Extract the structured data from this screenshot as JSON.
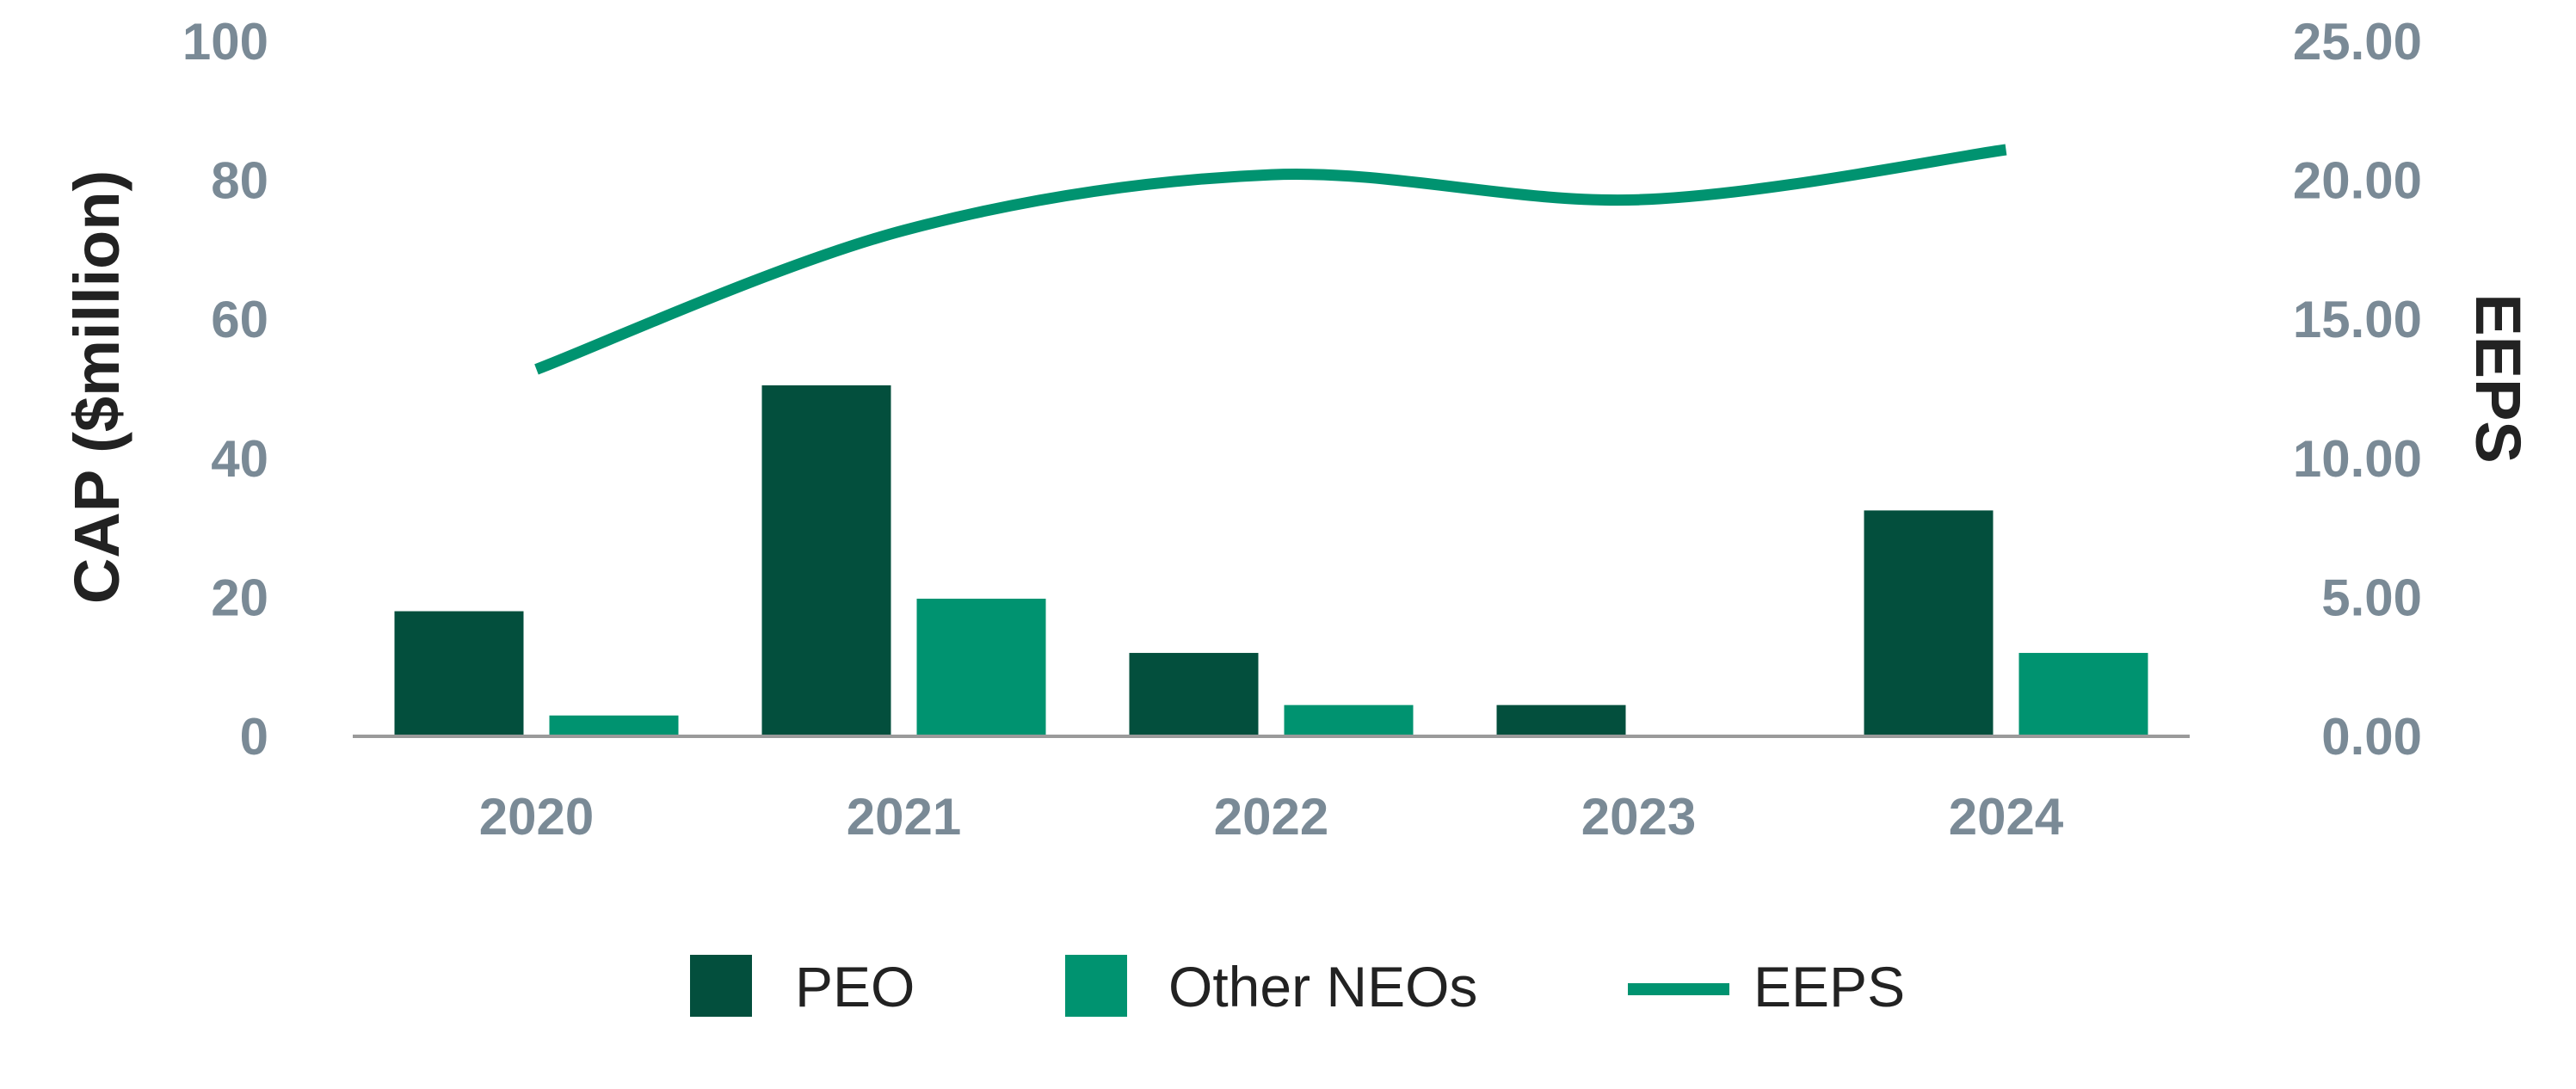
{
  "chart_data": {
    "type": "bar",
    "categories": [
      "2020",
      "2021",
      "2022",
      "2023",
      "2024"
    ],
    "series": [
      {
        "name": "PEO",
        "kind": "bar",
        "axis": "left",
        "color": "#034f3d",
        "values": [
          18,
          50.5,
          12,
          4.5,
          32.5
        ]
      },
      {
        "name": "Other NEOs",
        "kind": "bar",
        "axis": "left",
        "color": "#009370",
        "values": [
          3,
          19.8,
          4.5,
          null,
          12
        ]
      },
      {
        "name": "EEPS",
        "kind": "line",
        "axis": "right",
        "color": "#009370",
        "values": [
          13.2,
          18.2,
          20.2,
          19.3,
          21.1
        ]
      }
    ],
    "ylabel": "CAP ($million)",
    "y2label": "EEPS",
    "ylim": [
      0,
      100
    ],
    "y2lim": [
      0,
      25
    ],
    "yticks": [
      "0",
      "20",
      "40",
      "60",
      "80",
      "100"
    ],
    "y2ticks": [
      "0.00",
      "5.00",
      "10.00",
      "15.00",
      "20.00",
      "25.00"
    ],
    "legend_position": "bottom",
    "grid": false
  },
  "colors": {
    "tick_text": "#7a8a96",
    "axis_title": "#222222",
    "baseline": "#9a9a9a"
  }
}
